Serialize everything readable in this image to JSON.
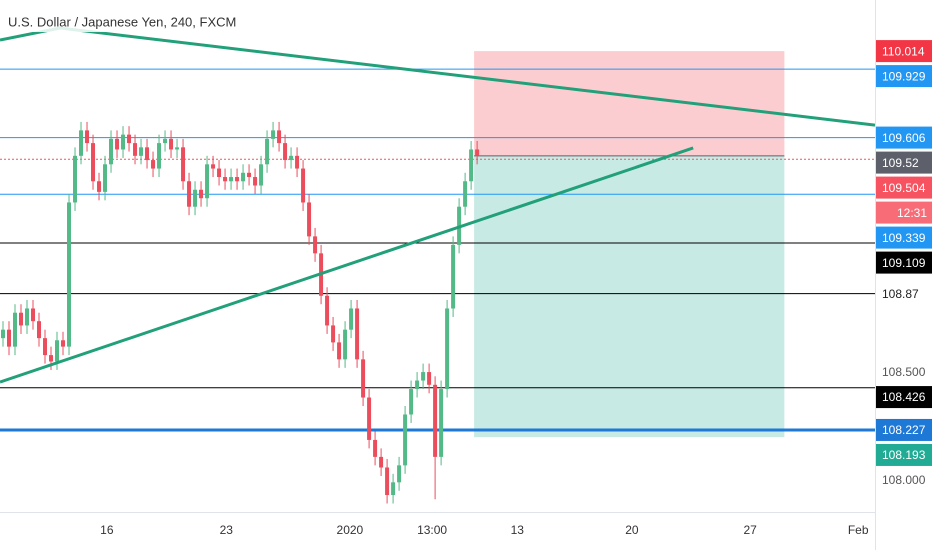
{
  "chart_data": {
    "type": "candlestick",
    "title": "U.S. Dollar / Japanese Yen, 240, FXCM",
    "up_color": "#53b987",
    "down_color": "#eb4d5c",
    "xlim": [
      -0.5,
      145.3
    ],
    "ylim": [
      107.84,
      110.255
    ],
    "xticks": [
      {
        "value": 17.3,
        "label": "16"
      },
      {
        "value": 37.2,
        "label": "23"
      },
      {
        "value": 57.8,
        "label": "2020"
      },
      {
        "value": 71.5,
        "label": "13:00"
      },
      {
        "value": 85.7,
        "label": "13"
      },
      {
        "value": 104.8,
        "label": "20"
      },
      {
        "value": 124.5,
        "label": "27"
      },
      {
        "value": 142.5,
        "label": "Feb"
      }
    ],
    "yticks": [
      {
        "value": 108.5,
        "label": "108.500"
      },
      {
        "value": 108,
        "label": "108.000"
      }
    ],
    "candles": {
      "open": [
        108.66,
        108.7,
        108.62,
        108.78,
        108.72,
        108.8,
        108.74,
        108.66,
        108.58,
        108.55,
        108.65,
        108.62,
        109.3,
        109.52,
        109.64,
        109.58,
        109.4,
        109.35,
        109.48,
        109.6,
        109.55,
        109.62,
        109.58,
        109.52,
        109.56,
        109.5,
        109.46,
        109.58,
        109.6,
        109.55,
        109.56,
        109.4,
        109.28,
        109.36,
        109.32,
        109.48,
        109.46,
        109.42,
        109.4,
        109.42,
        109.4,
        109.44,
        109.42,
        109.38,
        109.48,
        109.6,
        109.64,
        109.58,
        109.5,
        109.52,
        109.46,
        109.3,
        109.14,
        109.06,
        108.86,
        108.72,
        108.64,
        108.56,
        108.7,
        108.8,
        108.56,
        108.38,
        108.18,
        108.1,
        108.05,
        107.92,
        107.98,
        108.06,
        108.3,
        108.42,
        108.46,
        108.5,
        108.44,
        108.1,
        108.42,
        108.8,
        109.1,
        109.28,
        109.4,
        109.55
      ],
      "high": [
        108.74,
        108.74,
        108.82,
        108.82,
        108.84,
        108.84,
        108.78,
        108.7,
        108.62,
        108.69,
        108.69,
        109.34,
        109.56,
        109.68,
        109.68,
        109.62,
        109.44,
        109.52,
        109.64,
        109.64,
        109.66,
        109.66,
        109.62,
        109.6,
        109.6,
        109.54,
        109.62,
        109.64,
        109.64,
        109.6,
        109.6,
        109.44,
        109.4,
        109.4,
        109.52,
        109.52,
        109.5,
        109.46,
        109.46,
        109.46,
        109.48,
        109.48,
        109.46,
        109.52,
        109.64,
        109.68,
        109.68,
        109.62,
        109.56,
        109.56,
        109.5,
        109.34,
        109.18,
        109.1,
        108.9,
        108.76,
        108.68,
        108.74,
        108.84,
        108.84,
        108.6,
        108.42,
        108.22,
        108.14,
        108.09,
        108.02,
        108.1,
        108.34,
        108.46,
        108.5,
        108.54,
        108.54,
        108.48,
        108.46,
        108.84,
        109.14,
        109.32,
        109.44,
        109.59,
        109.59
      ],
      "low": [
        108.62,
        108.58,
        108.58,
        108.68,
        108.68,
        108.7,
        108.62,
        108.54,
        108.51,
        108.51,
        108.58,
        108.58,
        109.26,
        109.48,
        109.54,
        109.36,
        109.31,
        109.31,
        109.44,
        109.51,
        109.51,
        109.54,
        109.48,
        109.48,
        109.46,
        109.42,
        109.42,
        109.54,
        109.51,
        109.51,
        109.36,
        109.24,
        109.24,
        109.28,
        109.28,
        109.42,
        109.38,
        109.36,
        109.36,
        109.36,
        109.36,
        109.38,
        109.34,
        109.34,
        109.44,
        109.56,
        109.54,
        109.46,
        109.46,
        109.42,
        109.26,
        109.1,
        109.02,
        108.82,
        108.68,
        108.6,
        108.52,
        108.52,
        108.66,
        108.52,
        108.34,
        108.14,
        108.06,
        108.01,
        107.88,
        107.88,
        107.94,
        108.02,
        108.26,
        108.38,
        108.42,
        108.4,
        107.9,
        108.06,
        108.38,
        108.76,
        109.06,
        109.24,
        109.36,
        109.48
      ],
      "close": [
        108.7,
        108.62,
        108.78,
        108.72,
        108.8,
        108.74,
        108.66,
        108.58,
        108.55,
        108.65,
        108.62,
        109.3,
        109.52,
        109.64,
        109.58,
        109.4,
        109.35,
        109.48,
        109.6,
        109.55,
        109.62,
        109.58,
        109.52,
        109.56,
        109.5,
        109.46,
        109.58,
        109.6,
        109.55,
        109.56,
        109.4,
        109.28,
        109.36,
        109.32,
        109.48,
        109.46,
        109.42,
        109.4,
        109.42,
        109.4,
        109.44,
        109.42,
        109.38,
        109.48,
        109.6,
        109.64,
        109.58,
        109.5,
        109.52,
        109.46,
        109.3,
        109.14,
        109.06,
        108.86,
        108.72,
        108.64,
        108.56,
        108.7,
        108.8,
        108.56,
        108.38,
        108.18,
        108.1,
        108.05,
        107.92,
        107.98,
        108.06,
        108.3,
        108.42,
        108.46,
        108.5,
        108.44,
        108.1,
        108.42,
        108.8,
        109.1,
        109.28,
        109.4,
        109.55,
        109.52
      ]
    },
    "position": {
      "entry": 109.52,
      "stop": 110.014,
      "target": 108.193,
      "start": 78.5,
      "end": 130.2,
      "stop_color": "#f23645",
      "target_color": "#22ab94",
      "entry_color": "#5d606b"
    },
    "levels": [
      {
        "price": 109.929,
        "color": "#2196f3",
        "width": 1,
        "boxed": true
      },
      {
        "price": 109.606,
        "color": "#2196f3",
        "width": 1,
        "boxed": true
      },
      {
        "price": 109.339,
        "color": "#2196f3",
        "width": 1,
        "boxed": true
      },
      {
        "price": 109.109,
        "color": "#000000",
        "width": 1,
        "boxed": true
      },
      {
        "price": 108.87,
        "color": "#000000",
        "width": 1,
        "boxed": false
      },
      {
        "price": 108.426,
        "color": "#000000",
        "width": 1,
        "boxed": true
      },
      {
        "price": 108.227,
        "color": "#1e78d6",
        "width": 3,
        "boxed": true
      }
    ],
    "last_price": {
      "price": 109.504,
      "countdown": "12:31",
      "color": "#f7525f"
    },
    "trendlines": [
      {
        "color": "#22a07a",
        "x": [
          -0.5,
          9.5,
          145.3
        ],
        "y": [
          110.066,
          110.123,
          109.665
        ]
      },
      {
        "color": "#22a07a",
        "x": [
          -0.5,
          115
        ],
        "y": [
          108.453,
          109.557
        ]
      }
    ]
  }
}
